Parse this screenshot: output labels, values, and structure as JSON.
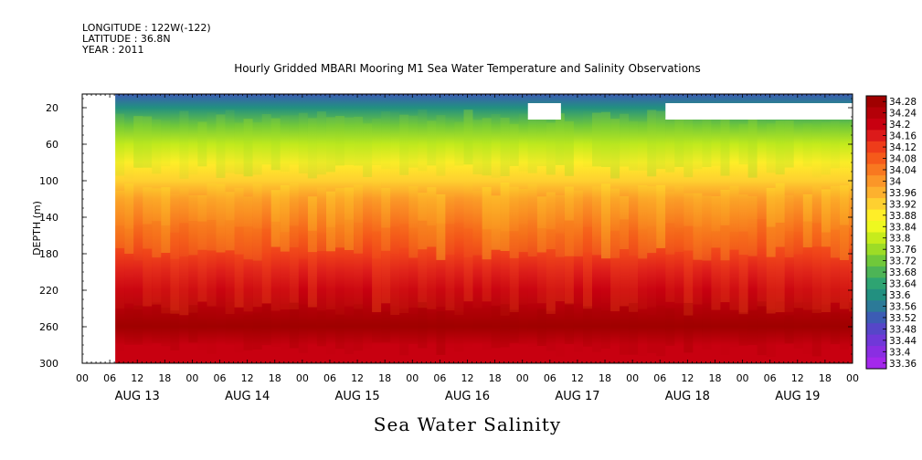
{
  "meta": {
    "longitude": "LONGITUDE : 122W(-122)",
    "latitude": "LATITUDE : 36.8N",
    "year": "YEAR : 2011"
  },
  "chart_data": {
    "type": "heatmap",
    "title": "Hourly Gridded MBARI Mooring M1 Sea Water Temperature and Salinity Observations",
    "xlabel": "Sea Water Salinity",
    "ylabel": "DEPTH (m)",
    "x_hour_ticks": [
      "00",
      "06",
      "12",
      "18",
      "00",
      "06",
      "12",
      "18",
      "00",
      "06",
      "12",
      "18",
      "00",
      "06",
      "12",
      "18",
      "00",
      "06",
      "12",
      "18",
      "00",
      "06",
      "12",
      "18",
      "00",
      "06",
      "12",
      "18",
      "00"
    ],
    "x_day_labels": [
      "AUG 13",
      "AUG 14",
      "AUG 15",
      "AUG 16",
      "AUG 17",
      "AUG 18",
      "AUG 19"
    ],
    "x_range_days": [
      0,
      7
    ],
    "data_start_day": 0.3,
    "y_ticks": [
      20,
      60,
      100,
      140,
      180,
      220,
      260,
      300
    ],
    "ylim": [
      300,
      5
    ],
    "colorbar_levels": [
      "34.28",
      "34.24",
      "34.2",
      "34.16",
      "34.12",
      "34.08",
      "34.04",
      "34",
      "33.96",
      "33.92",
      "33.88",
      "33.84",
      "33.8",
      "33.76",
      "33.72",
      "33.68",
      "33.64",
      "33.6",
      "33.56",
      "33.52",
      "33.48",
      "33.44",
      "33.4",
      "33.36"
    ],
    "colorbar_colors": [
      "#a00000",
      "#b40008",
      "#c80010",
      "#dc1a1a",
      "#ee3c1a",
      "#f55a1a",
      "#f87820",
      "#fb9628",
      "#fdb12e",
      "#fed030",
      "#ffee28",
      "#eef820",
      "#c6ec1c",
      "#9ddc26",
      "#70c83a",
      "#4db456",
      "#2ea472",
      "#229080",
      "#2c7a98",
      "#3c5cb4",
      "#5646c8",
      "#7038d8",
      "#8a2ee2",
      "#a428ec"
    ],
    "depth_profile": [
      {
        "depth": 5,
        "value": 33.5
      },
      {
        "depth": 20,
        "value": 33.62
      },
      {
        "depth": 40,
        "value": 33.72
      },
      {
        "depth": 60,
        "value": 33.8
      },
      {
        "depth": 80,
        "value": 33.87
      },
      {
        "depth": 100,
        "value": 33.93
      },
      {
        "depth": 120,
        "value": 33.99
      },
      {
        "depth": 140,
        "value": 34.05
      },
      {
        "depth": 160,
        "value": 34.09
      },
      {
        "depth": 180,
        "value": 34.11
      },
      {
        "depth": 200,
        "value": 34.16
      },
      {
        "depth": 220,
        "value": 34.21
      },
      {
        "depth": 240,
        "value": 34.25
      },
      {
        "depth": 260,
        "value": 34.27
      },
      {
        "depth": 280,
        "value": 34.22
      },
      {
        "depth": 300,
        "value": 34.19
      }
    ],
    "missing_regions": [
      {
        "day_start": 4.05,
        "day_end": 4.35,
        "depth_top": 15,
        "depth_bottom": 33
      },
      {
        "day_start": 5.3,
        "day_end": 7.0,
        "depth_top": 15,
        "depth_bottom": 33
      }
    ]
  }
}
